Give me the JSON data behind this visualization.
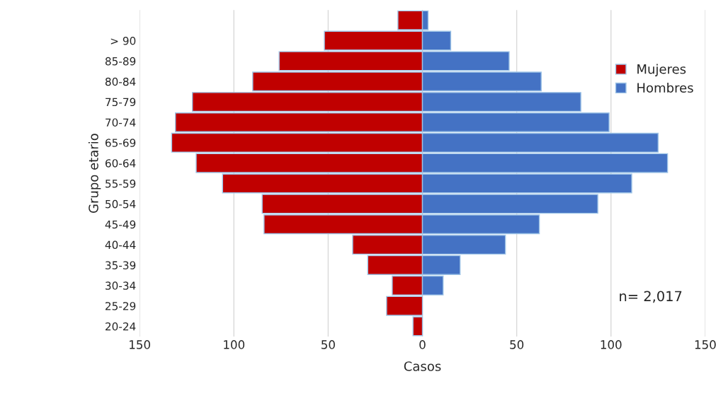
{
  "chart_data": {
    "type": "bar",
    "orientation": "horizontal",
    "xlabel": "Casos",
    "ylabel": "Grupo etario",
    "categories": [
      null,
      "> 90",
      "85-89",
      "80-84",
      "75-79",
      "70-74",
      "65-69",
      "60-64",
      "55-59",
      "50-54",
      "45-49",
      "40-44",
      "35-39",
      "30-34",
      "25-29",
      "20-24"
    ],
    "series": [
      {
        "name": "Mujeres",
        "color": "#c00000",
        "values": [
          -13,
          -52,
          -76,
          -90,
          -122,
          -131,
          -133,
          -120,
          -106,
          -85,
          -84,
          -37,
          -29,
          -16,
          -19,
          -5
        ]
      },
      {
        "name": "Hombres",
        "color": "#4472c4",
        "values": [
          3,
          15,
          46,
          63,
          84,
          99,
          125,
          130,
          111,
          93,
          62,
          44,
          20,
          11,
          null,
          null
        ]
      }
    ],
    "xlim": [
      -150,
      150
    ],
    "xticks": [
      {
        "value": -150,
        "label": "150"
      },
      {
        "value": -100,
        "label": "100"
      },
      {
        "value": -50,
        "label": "50"
      },
      0,
      50,
      100,
      150
    ],
    "stacked": true,
    "grid": "x",
    "legend": "right",
    "annotations": [
      "n= 2,017"
    ]
  }
}
